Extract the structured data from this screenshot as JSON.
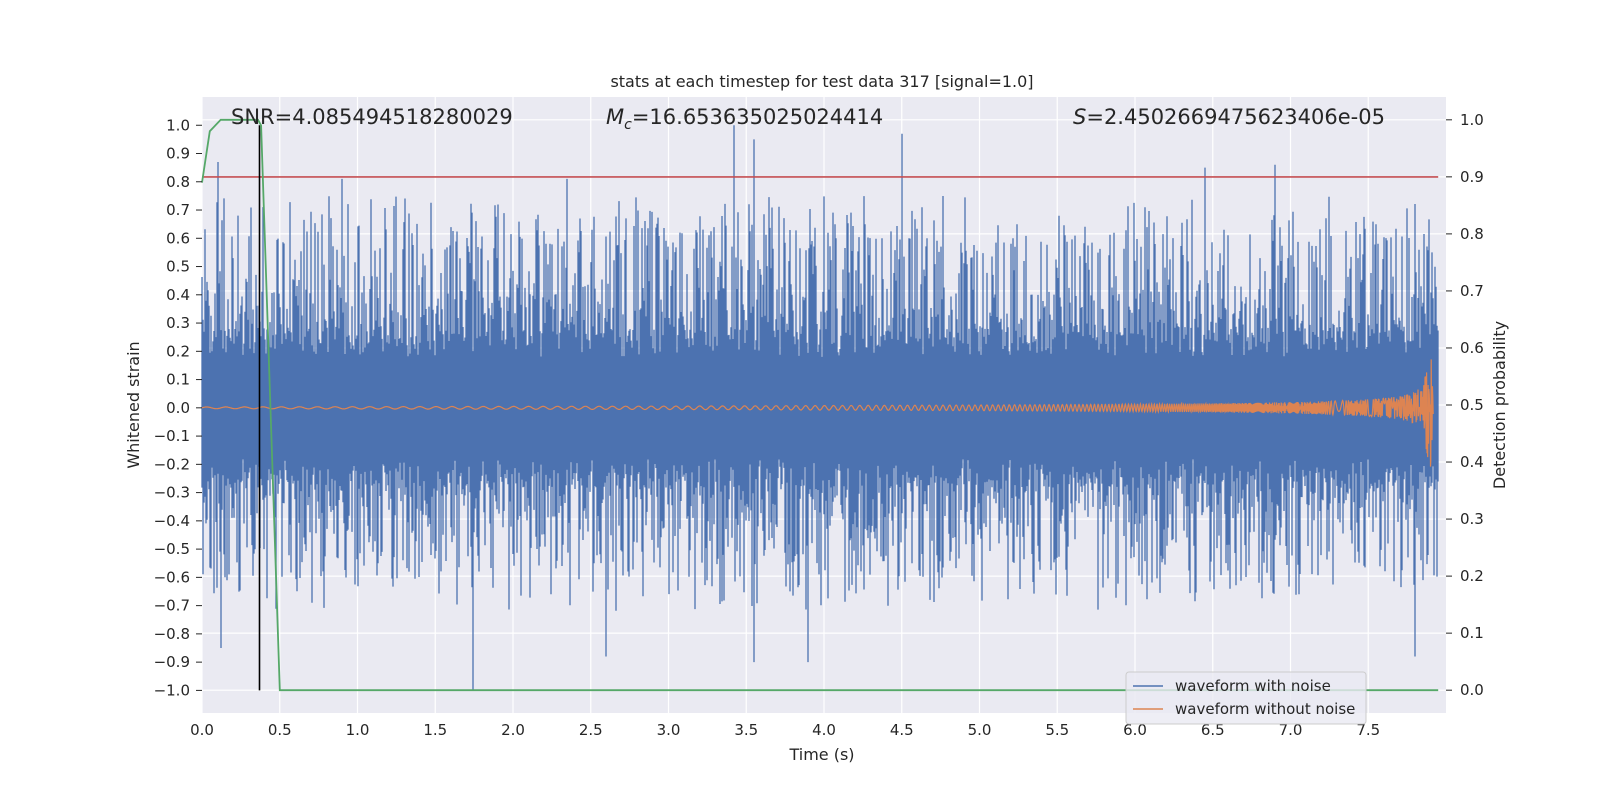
{
  "chart_data": {
    "type": "line",
    "title": "stats at each timestep for test data 317 [signal=1.0]",
    "xlabel": "Time (s)",
    "ylabel_left": "Whitened strain",
    "ylabel_right": "Detection probability",
    "xlim": [
      0.0,
      8.0
    ],
    "ylim_left": [
      -1.08,
      1.1
    ],
    "ylim_right": [
      -0.04,
      1.04
    ],
    "x_ticks": [
      "0.0",
      "0.5",
      "1.0",
      "1.5",
      "2.0",
      "2.5",
      "3.0",
      "3.5",
      "4.0",
      "4.5",
      "5.0",
      "5.5",
      "6.0",
      "6.5",
      "7.0",
      "7.5"
    ],
    "y_ticks_left": [
      "-1.0",
      "-0.9",
      "-0.8",
      "-0.7",
      "-0.6",
      "-0.5",
      "-0.4",
      "-0.3",
      "-0.2",
      "-0.1",
      "0.0",
      "0.1",
      "0.2",
      "0.3",
      "0.4",
      "0.5",
      "0.6",
      "0.7",
      "0.8",
      "0.9",
      "1.0"
    ],
    "y_ticks_right": [
      "0.0",
      "0.1",
      "0.2",
      "0.3",
      "0.4",
      "0.5",
      "0.6",
      "0.7",
      "0.8",
      "0.9",
      "1.0"
    ],
    "grid": true,
    "annotations": {
      "snr": "SNR=4.085494518280029",
      "mc_symbol": "M",
      "mc_sub": "c",
      "mc_value": "=16.653635025024414",
      "s_symbol": "S",
      "s_value": "=2.4502669475623406e-05"
    },
    "series": [
      {
        "name": "waveform with noise",
        "axis": "left",
        "color": "#4c72b0",
        "description": "dense whitened noise strain sampled over 0-8 s, envelope about +/-0.5 with spikes to +1.0 and -1.0",
        "x_range": [
          0.0,
          7.95
        ],
        "typical_envelope": [
          -0.5,
          0.55
        ],
        "peaks": [
          {
            "x": 0.1,
            "y": 0.87
          },
          {
            "x": 0.9,
            "y": 0.81
          },
          {
            "x": 2.35,
            "y": 0.81
          },
          {
            "x": 3.42,
            "y": 1.0
          },
          {
            "x": 3.55,
            "y": 0.95
          },
          {
            "x": 4.5,
            "y": 0.97
          },
          {
            "x": 6.9,
            "y": 0.86
          },
          {
            "x": 6.45,
            "y": 0.85
          },
          {
            "x": 0.12,
            "y": -0.85
          },
          {
            "x": 1.74,
            "y": -1.0
          },
          {
            "x": 3.9,
            "y": -0.9
          },
          {
            "x": 3.55,
            "y": -0.9
          },
          {
            "x": 2.6,
            "y": -0.88
          },
          {
            "x": 7.8,
            "y": -0.88
          }
        ]
      },
      {
        "name": "waveform without noise",
        "axis": "left",
        "color": "#dd8452",
        "description": "chirp signal, amplitude grows toward merger near 7.9 s",
        "x": [
          0.0,
          1.0,
          2.0,
          3.0,
          4.0,
          5.0,
          6.0,
          6.5,
          7.0,
          7.3,
          7.5,
          7.7,
          7.8,
          7.85,
          7.9,
          7.92
        ],
        "amplitude": [
          0.003,
          0.004,
          0.005,
          0.006,
          0.008,
          0.01,
          0.013,
          0.016,
          0.02,
          0.025,
          0.03,
          0.04,
          0.055,
          0.08,
          0.23,
          0.0
        ]
      },
      {
        "name": "detection probability",
        "axis": "right",
        "color": "#55a868",
        "x": [
          0.0,
          0.05,
          0.12,
          0.2,
          0.3,
          0.36,
          0.38,
          0.5,
          7.95
        ],
        "y": [
          0.89,
          0.98,
          1.0,
          1.0,
          1.0,
          1.0,
          0.99,
          0.0,
          0.0
        ]
      },
      {
        "name": "threshold",
        "axis": "right",
        "color": "#c44e52",
        "x": [
          0.0,
          7.95
        ],
        "y": [
          0.9,
          0.9
        ]
      },
      {
        "name": "detection time marker",
        "axis": "left",
        "color": "#000000",
        "x": [
          0.37,
          0.37
        ],
        "y": [
          -1.0,
          1.0
        ]
      }
    ],
    "legend": {
      "placement": "lower-right",
      "entries": [
        {
          "label": "waveform with noise",
          "color": "#4c72b0"
        },
        {
          "label": "waveform without noise",
          "color": "#dd8452"
        }
      ]
    }
  }
}
